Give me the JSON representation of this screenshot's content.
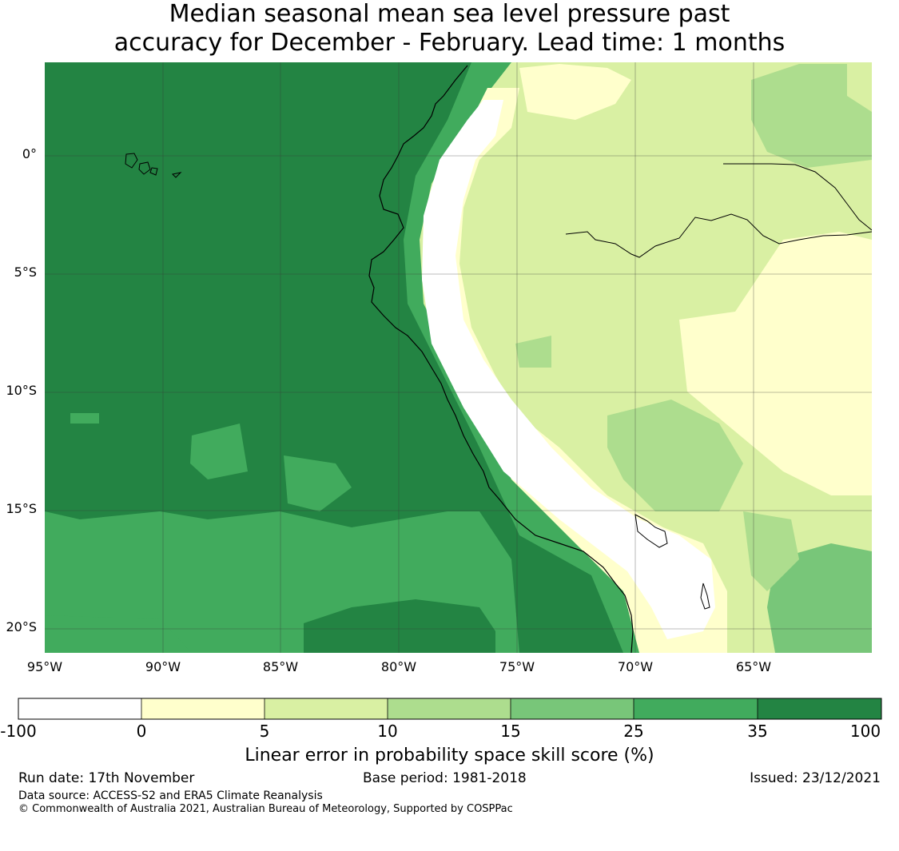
{
  "title": {
    "line1": "Median seasonal mean sea level pressure past",
    "line2": "accuracy for December - February. Lead time: 1 months"
  },
  "map": {
    "lat_labels": [
      "0°",
      "5°S",
      "10°S",
      "15°S",
      "20°S"
    ],
    "lon_labels": [
      "95°W",
      "90°W",
      "85°W",
      "80°W",
      "75°W",
      "70°W",
      "65°W"
    ],
    "gridlines": true
  },
  "colorbar": {
    "ticks": [
      "-100",
      "0",
      "5",
      "10",
      "15",
      "25",
      "35",
      "100"
    ],
    "colors": [
      "#ffffff",
      "#ffffcc",
      "#d9f0a3",
      "#addd8e",
      "#78c679",
      "#41ab5d",
      "#238443"
    ],
    "label": "Linear error in probability space skill score (%)"
  },
  "footer": {
    "run_date": "Run date: 17th November",
    "base_period": "Base period: 1981-2018",
    "issued": "Issued: 23/12/2021",
    "data_source": "Data source: ACCESS-S2 and ERA5 Climate Reanalysis",
    "copyright": "© Commonwealth of Australia 2021, Australian Bureau of Meteorology, Supported by COSPPac"
  }
}
